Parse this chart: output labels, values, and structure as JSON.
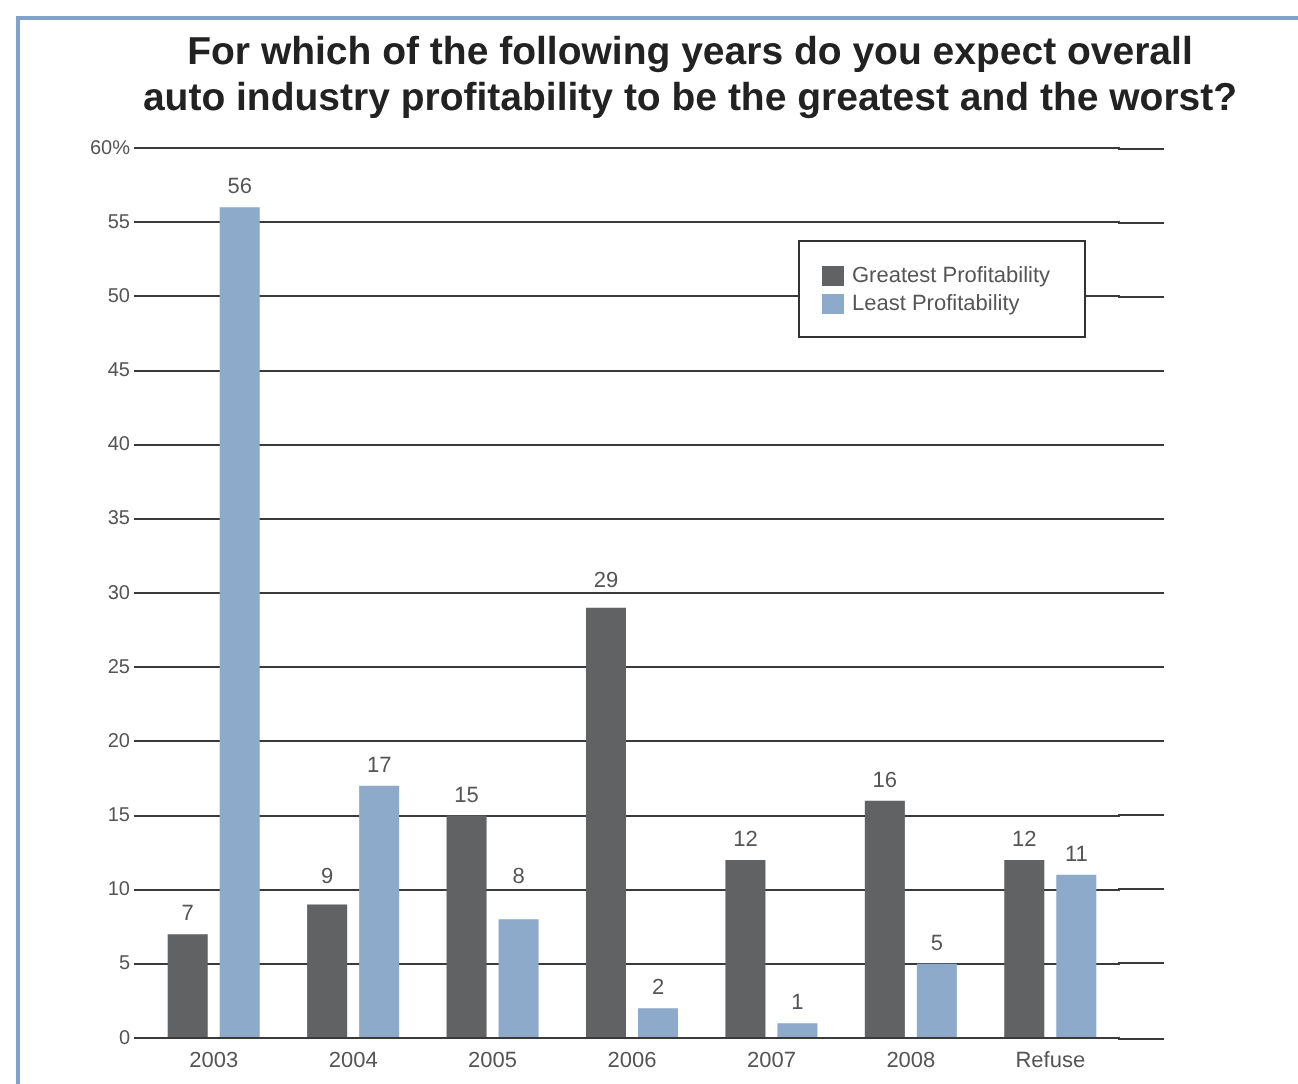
{
  "chart_data": {
    "type": "bar",
    "title": "For which of the following years do you expect overall\nauto industry profitability to be the greatest and the worst?",
    "categories": [
      "2003",
      "2004",
      "2005",
      "2006",
      "2007",
      "2008",
      "Refuse"
    ],
    "series": [
      {
        "name": "Greatest Profitability",
        "color": "#616264",
        "values": [
          7,
          9,
          15,
          29,
          12,
          16,
          12
        ]
      },
      {
        "name": "Least Profitability",
        "color": "#8eaaca",
        "values": [
          56,
          17,
          8,
          2,
          1,
          5,
          11
        ]
      }
    ],
    "ylim": [
      0,
      60
    ],
    "yticks": [
      0,
      5,
      10,
      15,
      20,
      25,
      30,
      35,
      40,
      45,
      50,
      55,
      {
        "value": 60,
        "label": "60%"
      }
    ],
    "grid": "y",
    "legend": "top right",
    "data_labels": true
  }
}
